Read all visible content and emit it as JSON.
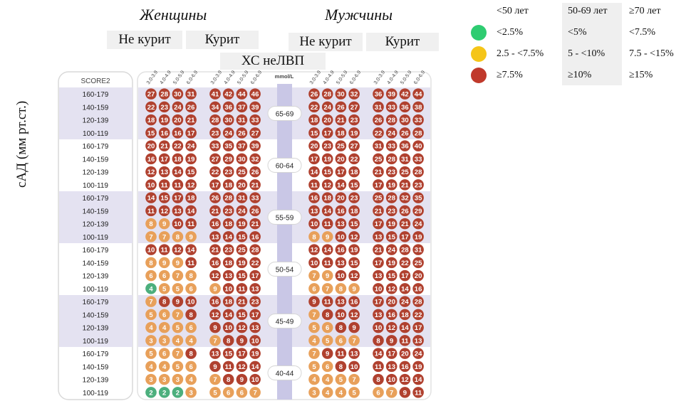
{
  "headers": {
    "women": "Женщины",
    "men": "Мужчины"
  },
  "smoking": {
    "nonsmoker": "Не курит",
    "smoker": "Курит"
  },
  "chol_title": "ХС неЛВП",
  "yaxis_label": "сАД (мм рт.ст.)",
  "legend": {
    "age_headers": [
      "<50 лет",
      "50-69 лет",
      "≥70 лет"
    ],
    "rows": [
      {
        "color": "#2ecc71",
        "values": [
          "<2.5%",
          "<5%",
          "<7.5%"
        ]
      },
      {
        "color": "#f5c518",
        "values": [
          "2.5 - <7.5%",
          "5 - <10%",
          "7.5 - <15%"
        ]
      },
      {
        "color": "#c0392b",
        "values": [
          "≥7.5%",
          "≥10%",
          "≥15%"
        ]
      }
    ]
  },
  "chart_data": {
    "type": "heatmap",
    "score_label": "SCORE2",
    "unit_label": "mmol/L",
    "chol_columns": [
      "3.0-3.9",
      "4.0-4.9",
      "5.0-5.9",
      "6.0-6.9"
    ],
    "sbp_rows": [
      "160-179",
      "140-159",
      "120-139",
      "100-119"
    ],
    "colors": {
      "green": "#4caf7d",
      "orange": "#e8a05a",
      "red": "#b0412f"
    },
    "age_groups": [
      {
        "age": "65-69",
        "women_nonsmoker": [
          [
            27,
            28,
            30,
            31
          ],
          [
            22,
            23,
            24,
            26
          ],
          [
            18,
            19,
            20,
            21
          ],
          [
            15,
            16,
            16,
            17
          ]
        ],
        "women_smoker": [
          [
            41,
            42,
            44,
            46
          ],
          [
            34,
            36,
            37,
            39
          ],
          [
            28,
            30,
            31,
            33
          ],
          [
            23,
            24,
            26,
            27
          ]
        ],
        "men_nonsmoker": [
          [
            26,
            28,
            30,
            32
          ],
          [
            22,
            24,
            26,
            27
          ],
          [
            18,
            20,
            21,
            23
          ],
          [
            15,
            17,
            18,
            19
          ]
        ],
        "men_smoker": [
          [
            36,
            39,
            42,
            44
          ],
          [
            31,
            33,
            36,
            38
          ],
          [
            26,
            28,
            30,
            33
          ],
          [
            22,
            24,
            26,
            28
          ]
        ]
      },
      {
        "age": "60-64",
        "women_nonsmoker": [
          [
            20,
            21,
            22,
            24
          ],
          [
            16,
            17,
            18,
            19
          ],
          [
            12,
            13,
            14,
            15
          ],
          [
            10,
            11,
            11,
            12
          ]
        ],
        "women_smoker": [
          [
            33,
            35,
            37,
            39
          ],
          [
            27,
            29,
            30,
            32
          ],
          [
            22,
            23,
            25,
            26
          ],
          [
            17,
            18,
            20,
            21
          ]
        ],
        "men_nonsmoker": [
          [
            20,
            23,
            25,
            27
          ],
          [
            17,
            19,
            20,
            22
          ],
          [
            14,
            15,
            17,
            18
          ],
          [
            11,
            12,
            14,
            15
          ]
        ],
        "men_smoker": [
          [
            31,
            33,
            36,
            40
          ],
          [
            25,
            28,
            31,
            33
          ],
          [
            21,
            23,
            25,
            28
          ],
          [
            17,
            19,
            21,
            23
          ]
        ]
      },
      {
        "age": "55-59",
        "women_nonsmoker": [
          [
            14,
            15,
            17,
            18
          ],
          [
            11,
            12,
            13,
            14
          ],
          [
            8,
            9,
            10,
            11
          ],
          [
            7,
            7,
            8,
            9
          ]
        ],
        "women_smoker": [
          [
            26,
            28,
            31,
            33
          ],
          [
            21,
            23,
            24,
            26
          ],
          [
            16,
            18,
            19,
            21
          ],
          [
            13,
            14,
            15,
            16
          ]
        ],
        "men_nonsmoker": [
          [
            16,
            18,
            20,
            23
          ],
          [
            13,
            14,
            16,
            18
          ],
          [
            10,
            11,
            13,
            15
          ],
          [
            8,
            9,
            10,
            12
          ]
        ],
        "men_smoker": [
          [
            25,
            28,
            32,
            35
          ],
          [
            21,
            23,
            26,
            29
          ],
          [
            17,
            19,
            21,
            24
          ],
          [
            13,
            15,
            17,
            19
          ]
        ]
      },
      {
        "age": "50-54",
        "women_nonsmoker": [
          [
            10,
            11,
            12,
            14
          ],
          [
            8,
            9,
            9,
            11
          ],
          [
            6,
            6,
            7,
            8
          ],
          [
            4,
            5,
            5,
            6
          ]
        ],
        "women_smoker": [
          [
            21,
            23,
            25,
            28
          ],
          [
            16,
            18,
            19,
            22
          ],
          [
            12,
            13,
            15,
            17
          ],
          [
            9,
            10,
            11,
            13
          ]
        ],
        "men_nonsmoker": [
          [
            12,
            14,
            16,
            19
          ],
          [
            10,
            11,
            13,
            15
          ],
          [
            7,
            9,
            10,
            12
          ],
          [
            6,
            7,
            8,
            9
          ]
        ],
        "men_smoker": [
          [
            21,
            24,
            28,
            31
          ],
          [
            17,
            19,
            22,
            25
          ],
          [
            13,
            15,
            17,
            20
          ],
          [
            10,
            12,
            14,
            16
          ]
        ]
      },
      {
        "age": "45-49",
        "women_nonsmoker": [
          [
            7,
            8,
            9,
            10
          ],
          [
            5,
            6,
            7,
            8
          ],
          [
            4,
            4,
            5,
            6
          ],
          [
            3,
            3,
            4,
            4
          ]
        ],
        "women_smoker": [
          [
            16,
            18,
            21,
            23
          ],
          [
            12,
            14,
            15,
            17
          ],
          [
            9,
            10,
            12,
            13
          ],
          [
            7,
            8,
            9,
            10
          ]
        ],
        "men_nonsmoker": [
          [
            9,
            11,
            13,
            16
          ],
          [
            7,
            8,
            10,
            12
          ],
          [
            5,
            6,
            8,
            9
          ],
          [
            4,
            5,
            6,
            7
          ]
        ],
        "men_smoker": [
          [
            17,
            20,
            24,
            28
          ],
          [
            13,
            16,
            18,
            22
          ],
          [
            10,
            12,
            14,
            17
          ],
          [
            8,
            9,
            11,
            13
          ]
        ]
      },
      {
        "age": "40-44",
        "women_nonsmoker": [
          [
            5,
            6,
            7,
            8
          ],
          [
            4,
            4,
            5,
            6
          ],
          [
            3,
            3,
            3,
            4
          ],
          [
            2,
            2,
            2,
            3
          ]
        ],
        "women_smoker": [
          [
            13,
            15,
            17,
            19
          ],
          [
            9,
            11,
            12,
            14
          ],
          [
            7,
            8,
            9,
            10
          ],
          [
            5,
            6,
            6,
            7
          ]
        ],
        "men_nonsmoker": [
          [
            7,
            9,
            11,
            13
          ],
          [
            5,
            6,
            8,
            10
          ],
          [
            4,
            4,
            5,
            7
          ],
          [
            3,
            4,
            4,
            5
          ]
        ],
        "men_smoker": [
          [
            14,
            17,
            20,
            24
          ],
          [
            11,
            13,
            16,
            19
          ],
          [
            8,
            10,
            12,
            14
          ],
          [
            6,
            7,
            9,
            11
          ]
        ]
      }
    ]
  }
}
